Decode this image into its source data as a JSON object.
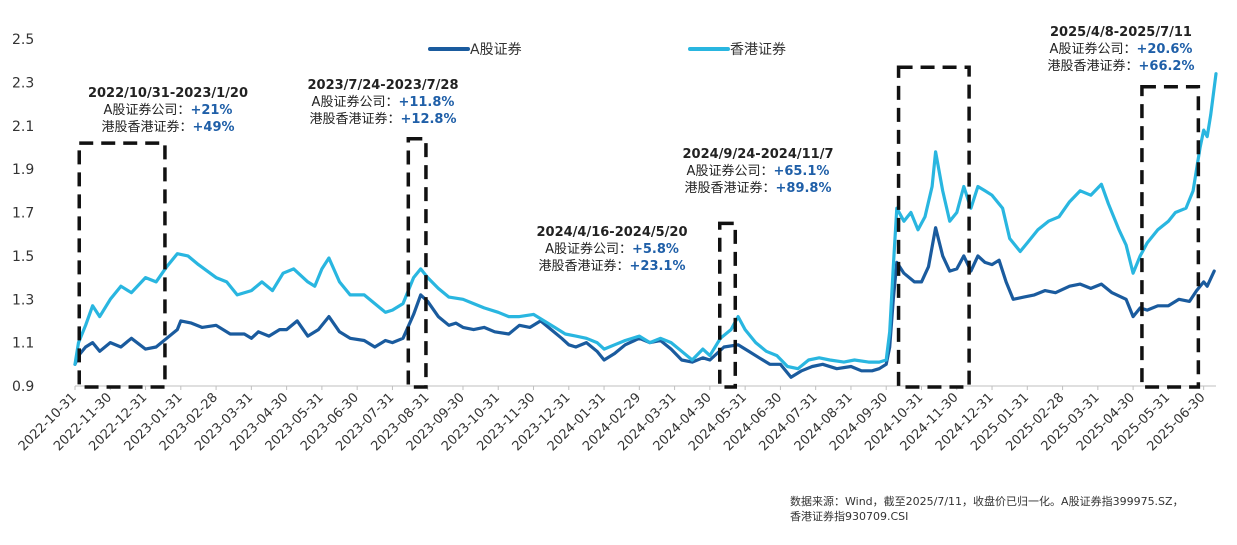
{
  "chart_data": {
    "type": "line",
    "title": "",
    "xlabel": "",
    "ylabel": "",
    "ylim": [
      0.9,
      2.5
    ],
    "yticks": [
      "2.5",
      "2.3",
      "2.1",
      "1.9",
      "1.7",
      "1.5",
      "1.3",
      "1.1",
      "0.9"
    ],
    "ytick_values": [
      2.5,
      2.3,
      2.1,
      1.9,
      1.7,
      1.5,
      1.3,
      1.1,
      0.9
    ],
    "x_categories": [
      "2022-10-31",
      "2022-11-30",
      "2022-12-31",
      "2023-01-31",
      "2023-02-28",
      "2023-03-31",
      "2023-04-30",
      "2023-05-31",
      "2023-06-30",
      "2023-07-31",
      "2023-08-31",
      "2023-09-30",
      "2023-10-31",
      "2023-11-30",
      "2023-12-31",
      "2024-01-31",
      "2024-02-29",
      "2024-03-31",
      "2024-04-30",
      "2024-05-31",
      "2024-06-30",
      "2024-07-31",
      "2024-08-31",
      "2024-09-30",
      "2024-10-31",
      "2024-11-30",
      "2024-12-31",
      "2025-01-31",
      "2025-02-28",
      "2025-03-31",
      "2025-04-30",
      "2025-05-31",
      "2025-06-30"
    ],
    "x_range": [
      0,
      32.35
    ],
    "legend": {
      "position": "top-center"
    },
    "series": [
      {
        "name": "A股证券",
        "color": "#1a5b9e",
        "points": [
          [
            0,
            1.0
          ],
          [
            0.1,
            1.04
          ],
          [
            0.3,
            1.08
          ],
          [
            0.5,
            1.1
          ],
          [
            0.7,
            1.06
          ],
          [
            1.0,
            1.1
          ],
          [
            1.3,
            1.08
          ],
          [
            1.6,
            1.12
          ],
          [
            2.0,
            1.07
          ],
          [
            2.3,
            1.08
          ],
          [
            2.6,
            1.12
          ],
          [
            2.9,
            1.16
          ],
          [
            3.0,
            1.2
          ],
          [
            3.3,
            1.19
          ],
          [
            3.6,
            1.17
          ],
          [
            4.0,
            1.18
          ],
          [
            4.4,
            1.14
          ],
          [
            4.8,
            1.14
          ],
          [
            5.0,
            1.12
          ],
          [
            5.2,
            1.15
          ],
          [
            5.5,
            1.13
          ],
          [
            5.8,
            1.16
          ],
          [
            6.0,
            1.16
          ],
          [
            6.3,
            1.2
          ],
          [
            6.6,
            1.13
          ],
          [
            6.9,
            1.16
          ],
          [
            7.2,
            1.22
          ],
          [
            7.5,
            1.15
          ],
          [
            7.8,
            1.12
          ],
          [
            8.2,
            1.11
          ],
          [
            8.5,
            1.08
          ],
          [
            8.8,
            1.11
          ],
          [
            9.0,
            1.1
          ],
          [
            9.3,
            1.12
          ],
          [
            9.6,
            1.23
          ],
          [
            9.8,
            1.32
          ],
          [
            10.0,
            1.29
          ],
          [
            10.3,
            1.22
          ],
          [
            10.6,
            1.18
          ],
          [
            10.8,
            1.19
          ],
          [
            11.0,
            1.17
          ],
          [
            11.3,
            1.16
          ],
          [
            11.6,
            1.17
          ],
          [
            11.9,
            1.15
          ],
          [
            12.3,
            1.14
          ],
          [
            12.6,
            1.18
          ],
          [
            12.9,
            1.17
          ],
          [
            13.2,
            1.2
          ],
          [
            13.5,
            1.16
          ],
          [
            13.8,
            1.12
          ],
          [
            14.0,
            1.09
          ],
          [
            14.2,
            1.08
          ],
          [
            14.5,
            1.1
          ],
          [
            14.8,
            1.06
          ],
          [
            15.0,
            1.02
          ],
          [
            15.3,
            1.05
          ],
          [
            15.6,
            1.09
          ],
          [
            16.0,
            1.12
          ],
          [
            16.3,
            1.1
          ],
          [
            16.6,
            1.11
          ],
          [
            16.9,
            1.07
          ],
          [
            17.2,
            1.02
          ],
          [
            17.5,
            1.01
          ],
          [
            17.8,
            1.03
          ],
          [
            18.0,
            1.02
          ],
          [
            18.4,
            1.08
          ],
          [
            18.8,
            1.09
          ],
          [
            19.1,
            1.06
          ],
          [
            19.4,
            1.03
          ],
          [
            19.7,
            1.0
          ],
          [
            20.0,
            1.0
          ],
          [
            20.3,
            0.94
          ],
          [
            20.6,
            0.97
          ],
          [
            20.9,
            0.99
          ],
          [
            21.2,
            1.0
          ],
          [
            21.6,
            0.98
          ],
          [
            22.0,
            0.99
          ],
          [
            22.3,
            0.97
          ],
          [
            22.6,
            0.97
          ],
          [
            22.8,
            0.98
          ],
          [
            23.0,
            1.0
          ],
          [
            23.1,
            1.08
          ],
          [
            23.2,
            1.3
          ],
          [
            23.3,
            1.47
          ],
          [
            23.5,
            1.42
          ],
          [
            23.8,
            1.38
          ],
          [
            24.0,
            1.38
          ],
          [
            24.2,
            1.45
          ],
          [
            24.4,
            1.63
          ],
          [
            24.6,
            1.5
          ],
          [
            24.8,
            1.43
          ],
          [
            25.0,
            1.44
          ],
          [
            25.2,
            1.5
          ],
          [
            25.4,
            1.43
          ],
          [
            25.6,
            1.5
          ],
          [
            25.8,
            1.47
          ],
          [
            26.0,
            1.46
          ],
          [
            26.2,
            1.48
          ],
          [
            26.4,
            1.38
          ],
          [
            26.6,
            1.3
          ],
          [
            26.9,
            1.31
          ],
          [
            27.2,
            1.32
          ],
          [
            27.5,
            1.34
          ],
          [
            27.8,
            1.33
          ],
          [
            28.2,
            1.36
          ],
          [
            28.5,
            1.37
          ],
          [
            28.8,
            1.35
          ],
          [
            29.1,
            1.37
          ],
          [
            29.4,
            1.33
          ],
          [
            29.8,
            1.3
          ],
          [
            30.0,
            1.22
          ],
          [
            30.2,
            1.26
          ],
          [
            30.4,
            1.25
          ],
          [
            30.7,
            1.27
          ],
          [
            31.0,
            1.27
          ],
          [
            31.3,
            1.3
          ],
          [
            31.6,
            1.29
          ],
          [
            31.8,
            1.34
          ],
          [
            32.0,
            1.38
          ],
          [
            32.1,
            1.36
          ],
          [
            32.3,
            1.43
          ]
        ]
      },
      {
        "name": "香港证券",
        "color": "#29b6e0",
        "points": [
          [
            0,
            1.0
          ],
          [
            0.1,
            1.1
          ],
          [
            0.3,
            1.18
          ],
          [
            0.5,
            1.27
          ],
          [
            0.7,
            1.22
          ],
          [
            1.0,
            1.3
          ],
          [
            1.3,
            1.36
          ],
          [
            1.6,
            1.33
          ],
          [
            2.0,
            1.4
          ],
          [
            2.3,
            1.38
          ],
          [
            2.6,
            1.45
          ],
          [
            2.9,
            1.51
          ],
          [
            3.2,
            1.5
          ],
          [
            3.5,
            1.46
          ],
          [
            4.0,
            1.4
          ],
          [
            4.3,
            1.38
          ],
          [
            4.6,
            1.32
          ],
          [
            5.0,
            1.34
          ],
          [
            5.3,
            1.38
          ],
          [
            5.6,
            1.34
          ],
          [
            5.9,
            1.42
          ],
          [
            6.2,
            1.44
          ],
          [
            6.6,
            1.38
          ],
          [
            6.8,
            1.36
          ],
          [
            7.0,
            1.44
          ],
          [
            7.2,
            1.49
          ],
          [
            7.5,
            1.38
          ],
          [
            7.8,
            1.32
          ],
          [
            8.2,
            1.32
          ],
          [
            8.5,
            1.28
          ],
          [
            8.8,
            1.24
          ],
          [
            9.0,
            1.25
          ],
          [
            9.3,
            1.28
          ],
          [
            9.6,
            1.4
          ],
          [
            9.8,
            1.44
          ],
          [
            10.0,
            1.4
          ],
          [
            10.3,
            1.35
          ],
          [
            10.6,
            1.31
          ],
          [
            11.0,
            1.3
          ],
          [
            11.3,
            1.28
          ],
          [
            11.6,
            1.26
          ],
          [
            12.0,
            1.24
          ],
          [
            12.3,
            1.22
          ],
          [
            12.6,
            1.22
          ],
          [
            13.0,
            1.23
          ],
          [
            13.3,
            1.2
          ],
          [
            13.6,
            1.17
          ],
          [
            13.9,
            1.14
          ],
          [
            14.2,
            1.13
          ],
          [
            14.5,
            1.12
          ],
          [
            14.8,
            1.1
          ],
          [
            15.0,
            1.07
          ],
          [
            15.3,
            1.09
          ],
          [
            15.6,
            1.11
          ],
          [
            16.0,
            1.13
          ],
          [
            16.3,
            1.1
          ],
          [
            16.6,
            1.12
          ],
          [
            16.9,
            1.1
          ],
          [
            17.2,
            1.06
          ],
          [
            17.5,
            1.02
          ],
          [
            17.8,
            1.07
          ],
          [
            18.0,
            1.04
          ],
          [
            18.3,
            1.12
          ],
          [
            18.6,
            1.16
          ],
          [
            18.8,
            1.22
          ],
          [
            19.0,
            1.16
          ],
          [
            19.3,
            1.1
          ],
          [
            19.6,
            1.06
          ],
          [
            19.9,
            1.04
          ],
          [
            20.2,
            0.99
          ],
          [
            20.5,
            0.98
          ],
          [
            20.8,
            1.02
          ],
          [
            21.1,
            1.03
          ],
          [
            21.4,
            1.02
          ],
          [
            21.8,
            1.01
          ],
          [
            22.1,
            1.02
          ],
          [
            22.5,
            1.01
          ],
          [
            22.8,
            1.01
          ],
          [
            23.0,
            1.02
          ],
          [
            23.1,
            1.15
          ],
          [
            23.2,
            1.45
          ],
          [
            23.3,
            1.72
          ],
          [
            23.5,
            1.66
          ],
          [
            23.7,
            1.7
          ],
          [
            23.9,
            1.62
          ],
          [
            24.1,
            1.68
          ],
          [
            24.3,
            1.82
          ],
          [
            24.4,
            1.98
          ],
          [
            24.6,
            1.8
          ],
          [
            24.8,
            1.66
          ],
          [
            25.0,
            1.7
          ],
          [
            25.2,
            1.82
          ],
          [
            25.4,
            1.72
          ],
          [
            25.6,
            1.82
          ],
          [
            25.8,
            1.8
          ],
          [
            26.0,
            1.78
          ],
          [
            26.3,
            1.72
          ],
          [
            26.5,
            1.58
          ],
          [
            26.8,
            1.52
          ],
          [
            27.0,
            1.56
          ],
          [
            27.3,
            1.62
          ],
          [
            27.6,
            1.66
          ],
          [
            27.9,
            1.68
          ],
          [
            28.2,
            1.75
          ],
          [
            28.5,
            1.8
          ],
          [
            28.8,
            1.78
          ],
          [
            29.1,
            1.83
          ],
          [
            29.3,
            1.74
          ],
          [
            29.6,
            1.62
          ],
          [
            29.8,
            1.55
          ],
          [
            30.0,
            1.42
          ],
          [
            30.2,
            1.5
          ],
          [
            30.4,
            1.56
          ],
          [
            30.7,
            1.62
          ],
          [
            31.0,
            1.66
          ],
          [
            31.2,
            1.7
          ],
          [
            31.5,
            1.72
          ],
          [
            31.7,
            1.8
          ],
          [
            31.9,
            2.0
          ],
          [
            32.0,
            2.08
          ],
          [
            32.1,
            2.05
          ],
          [
            32.2,
            2.15
          ],
          [
            32.35,
            2.34
          ]
        ]
      }
    ],
    "annotations": [
      {
        "title": "2022/10/31-2023/1/20",
        "a_label": "A股证券公司：",
        "a_value": "+21%",
        "hk_label": "港股香港证券：",
        "hk_value": "+49%"
      },
      {
        "title": "2023/7/24-2023/7/28",
        "a_label": "A股证券公司：",
        "a_value": "+11.8%",
        "hk_label": "港股香港证券：",
        "hk_value": "+12.8%"
      },
      {
        "title": "2024/4/16-2024/5/20",
        "a_label": "A股证券公司：",
        "a_value": "+5.8%",
        "hk_label": "港股香港证券：",
        "hk_value": "+23.1%"
      },
      {
        "title": "2024/9/24-2024/11/7",
        "a_label": "A股证券公司：",
        "a_value": "+65.1%",
        "hk_label": "港股香港证券：",
        "hk_value": "+89.8%"
      },
      {
        "title": "2025/4/8-2025/7/11",
        "a_label": "A股证券公司：",
        "a_value": "+20.6%",
        "hk_label": "港股香港证券：",
        "hk_value": "+66.2%"
      }
    ],
    "highlight_boxes": [
      {
        "from": 0.12,
        "to": 2.55,
        "ytop": 2.02
      },
      {
        "from": 9.45,
        "to": 9.95,
        "ytop": 2.04
      },
      {
        "from": 18.28,
        "to": 18.72,
        "ytop": 1.65
      },
      {
        "from": 23.35,
        "to": 25.35,
        "ytop": 2.37
      },
      {
        "from": 30.25,
        "to": 31.85,
        "ytop": 2.28
      }
    ],
    "source_note": "数据来源：Wind，截至2025/7/11，收盘价已归一化。A股证券指399975.SZ，香港证券指930709.CSI"
  }
}
